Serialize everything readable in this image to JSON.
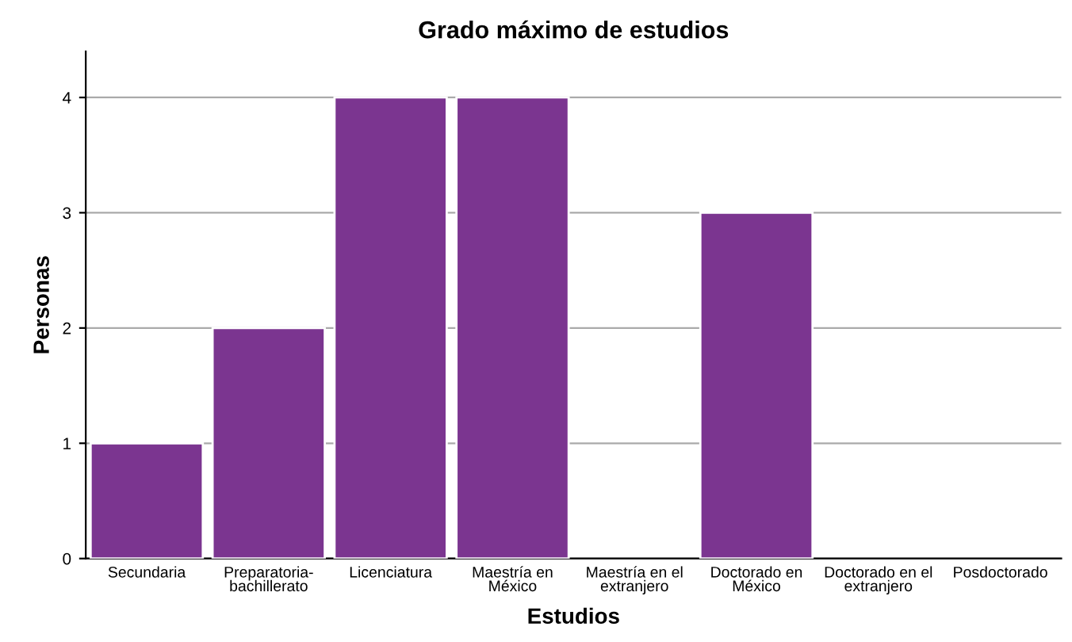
{
  "chart_data": {
    "type": "bar",
    "title": "Grado máximo de estudios",
    "xlabel": "Estudios",
    "ylabel": "Personas",
    "categories": [
      "Secundaria",
      "Preparatoria-\nbachillerato",
      "Licenciatura",
      "Maestría en\nMéxico",
      "Maestría en el\nextranjero",
      "Doctorado en\nMéxico",
      "Doctorado en el\nextranjero",
      "Posdoctorado"
    ],
    "values": [
      1,
      2,
      4,
      4,
      0,
      3,
      0,
      0
    ],
    "color": "#7b3590",
    "ylim": [
      0,
      4.4
    ],
    "yticks": [
      0,
      1,
      2,
      3,
      4
    ],
    "grid": "y"
  }
}
